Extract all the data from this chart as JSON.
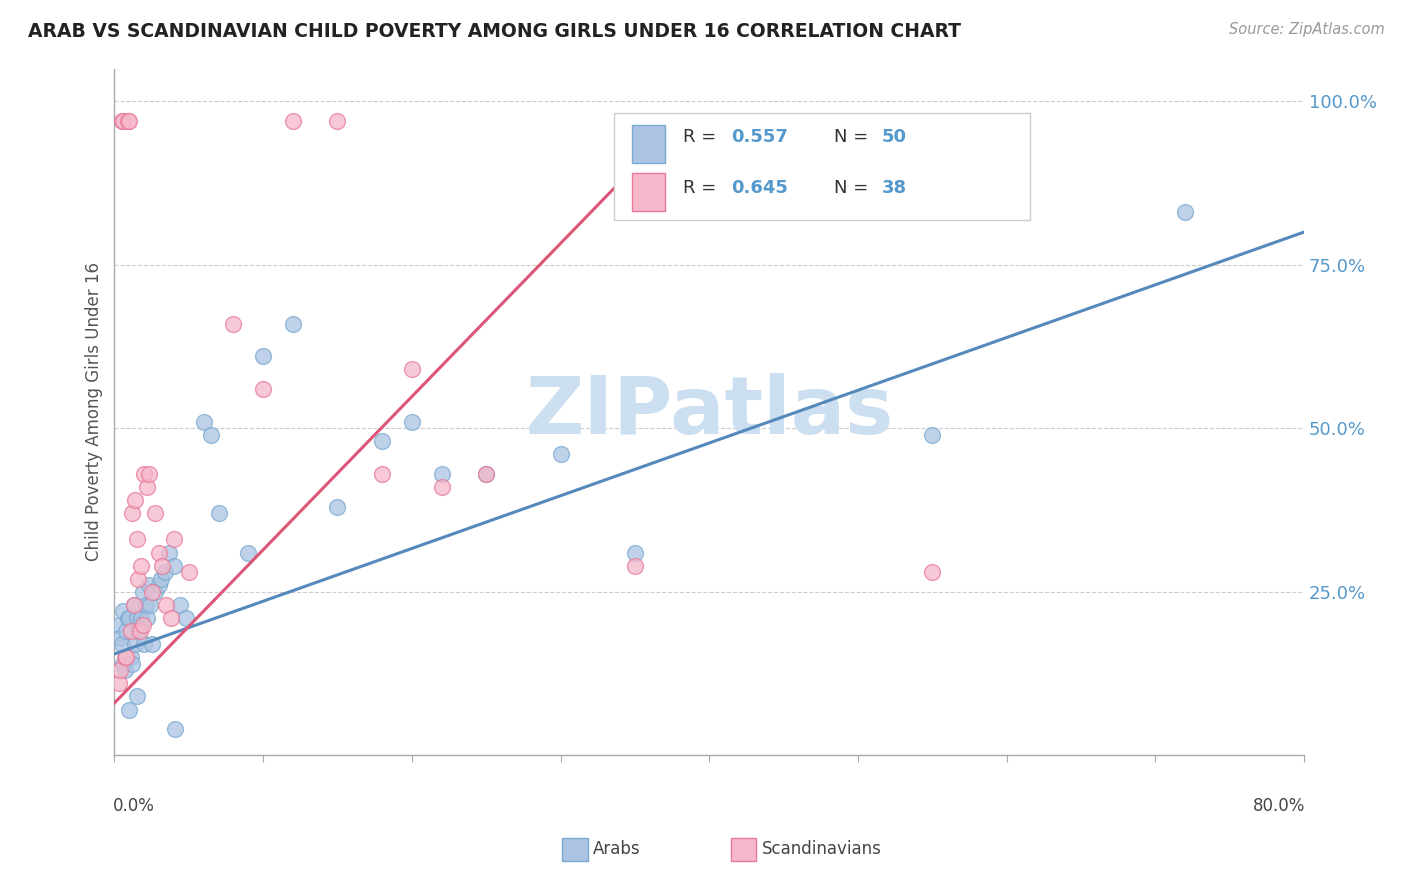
{
  "title": "ARAB VS SCANDINAVIAN CHILD POVERTY AMONG GIRLS UNDER 16 CORRELATION CHART",
  "source": "Source: ZipAtlas.com",
  "ylabel": "Child Poverty Among Girls Under 16",
  "xlim": [
    0.0,
    0.8
  ],
  "ylim": [
    0.0,
    1.05
  ],
  "yticks": [
    0.0,
    0.25,
    0.5,
    0.75,
    1.0
  ],
  "ytick_labels": [
    "",
    "25.0%",
    "50.0%",
    "75.0%",
    "100.0%"
  ],
  "arab_color": "#aac4e2",
  "scand_color": "#f5b8ca",
  "arab_edge_color": "#7aaad0",
  "scand_edge_color": "#e87898",
  "arab_line_color": "#5588bb",
  "scand_line_color": "#dd5577",
  "tick_color": "#5599cc",
  "watermark": "ZIPatlas",
  "watermark_color": "#ccdff0",
  "arab_x": [
    0.003,
    0.004,
    0.005,
    0.006,
    0.006,
    0.007,
    0.008,
    0.009,
    0.01,
    0.01,
    0.011,
    0.012,
    0.013,
    0.014,
    0.015,
    0.015,
    0.016,
    0.017,
    0.018,
    0.019,
    0.02,
    0.021,
    0.022,
    0.023,
    0.024,
    0.025,
    0.027,
    0.03,
    0.031,
    0.034,
    0.037,
    0.04,
    0.041,
    0.044,
    0.048,
    0.06,
    0.065,
    0.07,
    0.09,
    0.1,
    0.12,
    0.15,
    0.18,
    0.2,
    0.22,
    0.25,
    0.3,
    0.35,
    0.55,
    0.72
  ],
  "arab_y": [
    0.2,
    0.18,
    0.17,
    0.14,
    0.22,
    0.13,
    0.19,
    0.21,
    0.21,
    0.07,
    0.15,
    0.14,
    0.23,
    0.17,
    0.09,
    0.21,
    0.19,
    0.2,
    0.21,
    0.25,
    0.17,
    0.23,
    0.21,
    0.26,
    0.23,
    0.17,
    0.25,
    0.26,
    0.27,
    0.28,
    0.31,
    0.29,
    0.04,
    0.23,
    0.21,
    0.51,
    0.49,
    0.37,
    0.31,
    0.61,
    0.66,
    0.38,
    0.48,
    0.51,
    0.43,
    0.43,
    0.46,
    0.31,
    0.49,
    0.83
  ],
  "scand_x": [
    0.003,
    0.004,
    0.005,
    0.006,
    0.007,
    0.008,
    0.009,
    0.01,
    0.011,
    0.012,
    0.013,
    0.014,
    0.015,
    0.016,
    0.017,
    0.018,
    0.019,
    0.02,
    0.022,
    0.023,
    0.025,
    0.027,
    0.03,
    0.032,
    0.035,
    0.038,
    0.04,
    0.05,
    0.08,
    0.1,
    0.12,
    0.15,
    0.18,
    0.2,
    0.22,
    0.25,
    0.35,
    0.55
  ],
  "scand_y": [
    0.11,
    0.13,
    0.97,
    0.97,
    0.15,
    0.15,
    0.97,
    0.97,
    0.19,
    0.37,
    0.23,
    0.39,
    0.33,
    0.27,
    0.19,
    0.29,
    0.2,
    0.43,
    0.41,
    0.43,
    0.25,
    0.37,
    0.31,
    0.29,
    0.23,
    0.21,
    0.33,
    0.28,
    0.66,
    0.56,
    0.97,
    0.97,
    0.43,
    0.59,
    0.41,
    0.43,
    0.29,
    0.28
  ],
  "arab_line_x0": 0.0,
  "arab_line_y0": 0.155,
  "arab_line_x1": 0.8,
  "arab_line_y1": 0.8,
  "scand_line_x0": 0.0,
  "scand_line_y0": 0.08,
  "scand_line_x1": 0.38,
  "scand_line_y1": 0.97
}
